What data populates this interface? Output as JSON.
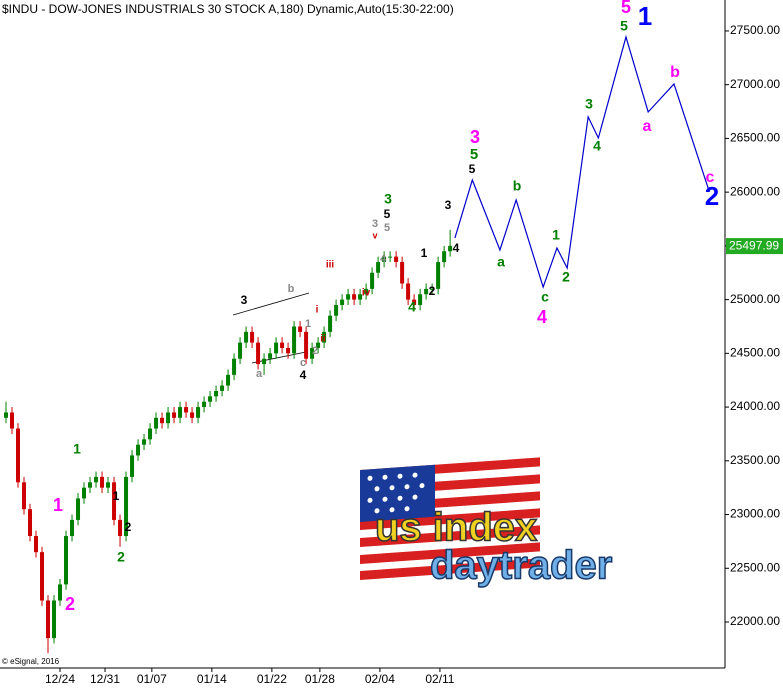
{
  "chart_data": {
    "type": "candlestick",
    "title": "$INDU - DOW-JONES INDUSTRIALS 30 STOCK A,180) Dynamic,Auto(15:30-22:00)",
    "copyright": "© eSignal, 2016",
    "up_color": "#008000",
    "down_color": "#cc0000",
    "open": [
      23900,
      23950,
      23800,
      23300,
      23050,
      22800,
      22650,
      22200,
      21850,
      22200,
      22350,
      22800,
      22950,
      23150,
      23250,
      23300,
      23350,
      23250,
      23300,
      22950,
      22800,
      23350,
      23550,
      23650,
      23700,
      23800,
      23900,
      23850,
      23950,
      23900,
      24000,
      23950,
      23900,
      24000,
      24050,
      24100,
      24150,
      24200,
      24300,
      24450,
      24600,
      24700,
      24600,
      24400,
      24450,
      24500,
      24600,
      24550,
      24500,
      24750,
      24700,
      24450,
      24550,
      24600,
      24700,
      24850,
      24950,
      25000,
      25050,
      25000,
      25050,
      25100,
      25250,
      25350,
      25400,
      25400,
      25350,
      25150,
      25000,
      24950,
      25050,
      25100,
      25100,
      25350,
      25450
    ],
    "high": [
      24050,
      24000,
      23850,
      23350,
      23100,
      22850,
      22700,
      22250,
      22250,
      22400,
      22850,
      23000,
      23200,
      23300,
      23350,
      23400,
      23400,
      23350,
      23350,
      23000,
      23400,
      23600,
      23700,
      23750,
      23850,
      23950,
      23950,
      24000,
      24000,
      24050,
      24050,
      24000,
      24050,
      24100,
      24150,
      24200,
      24250,
      24350,
      24500,
      24650,
      24750,
      24750,
      24650,
      24500,
      24550,
      24650,
      24650,
      24600,
      24800,
      24800,
      24750,
      24600,
      24650,
      24750,
      24900,
      25000,
      25050,
      25100,
      25100,
      25100,
      25150,
      25300,
      25400,
      25450,
      25450,
      25450,
      25400,
      25200,
      25050,
      25100,
      25150,
      25150,
      25400,
      25500,
      25650
    ],
    "low": [
      23850,
      23750,
      23250,
      23000,
      22750,
      22600,
      22150,
      21710,
      21800,
      22150,
      22300,
      22750,
      22900,
      23100,
      23200,
      23250,
      23200,
      23200,
      22900,
      22700,
      22750,
      23300,
      23500,
      23600,
      23650,
      23750,
      23800,
      23800,
      23850,
      23850,
      23900,
      23850,
      23850,
      23950,
      24000,
      24050,
      24100,
      24150,
      24250,
      24400,
      24550,
      24550,
      24350,
      24300,
      24400,
      24450,
      24500,
      24450,
      24450,
      24650,
      24400,
      24400,
      24500,
      24550,
      24650,
      24800,
      24900,
      24950,
      24950,
      24950,
      25000,
      25050,
      25200,
      25300,
      25350,
      25300,
      25100,
      24950,
      24900,
      24900,
      25000,
      25050,
      25050,
      25300,
      25400
    ],
    "close": [
      23950,
      23800,
      23300,
      23050,
      22800,
      22650,
      22200,
      21850,
      22200,
      22350,
      22800,
      22950,
      23150,
      23250,
      23300,
      23350,
      23250,
      23300,
      22950,
      22800,
      23350,
      23550,
      23650,
      23700,
      23800,
      23900,
      23850,
      23950,
      23900,
      24000,
      23950,
      23900,
      24000,
      24050,
      24100,
      24150,
      24200,
      24300,
      24450,
      24600,
      24700,
      24600,
      24400,
      24450,
      24500,
      24600,
      24550,
      24500,
      24750,
      24700,
      24450,
      24550,
      24600,
      24700,
      24850,
      24950,
      25000,
      25050,
      25000,
      25050,
      25100,
      25250,
      25350,
      25400,
      25400,
      25350,
      25150,
      25000,
      24950,
      25050,
      25100,
      25100,
      25350,
      25450,
      25500
    ],
    "projection": {
      "color": "#0000cc",
      "x": [
        75.8,
        78.7,
        83.3,
        86,
        90.5,
        92.8,
        94.5,
        98,
        99.7,
        104.3,
        108,
        112.3,
        118.2
      ],
      "values": [
        25574,
        26113,
        25462,
        25927,
        25117,
        25480,
        25294,
        26700,
        26504,
        27444,
        26746,
        27007,
        26002
      ]
    },
    "last_price": 25497.99,
    "last_price_color": "#22aa22",
    "xlim": [
      0,
      120.8
    ],
    "xticks": [
      {
        "value": 10,
        "label": "12/24"
      },
      {
        "value": 17.5,
        "label": "12/31"
      },
      {
        "value": 25.3,
        "label": "01/07"
      },
      {
        "value": 35.3,
        "label": "01/14"
      },
      {
        "value": 45.3,
        "label": "01/22"
      },
      {
        "value": 53.3,
        "label": "01/28"
      },
      {
        "value": 63.3,
        "label": "02/04"
      },
      {
        "value": 73.3,
        "label": "02/11"
      }
    ],
    "ylim": [
      21572,
      27788
    ],
    "yticks": [
      {
        "value": 22000,
        "label": "22000.00"
      },
      {
        "value": 22500,
        "label": "22500.00"
      },
      {
        "value": 23000,
        "label": "23000.00"
      },
      {
        "value": 23500,
        "label": "23500.00"
      },
      {
        "value": 24000,
        "label": "24000.00"
      },
      {
        "value": 24500,
        "label": "24500.00"
      },
      {
        "value": 25000,
        "label": "25000.00"
      },
      {
        "value": 25500,
        "label": "25500.00"
      },
      {
        "value": 26000,
        "label": "26000.00"
      },
      {
        "value": 26500,
        "label": "26500.00"
      },
      {
        "value": 27000,
        "label": "27000.00"
      },
      {
        "value": 27500,
        "label": "27500.00"
      }
    ],
    "annotations": [
      {
        "text": "5",
        "color": "#ff00ff"
      },
      {
        "text": "1",
        "color": "#0000ff"
      },
      {
        "text": "5",
        "color": "#008000"
      },
      {
        "text": "3",
        "color": "#ff00ff"
      },
      {
        "text": "5",
        "color": "#008000"
      },
      {
        "text": "5",
        "color": "#000000"
      },
      {
        "text": "b",
        "color": "#ff00ff"
      },
      {
        "text": "a",
        "color": "#ff00ff"
      },
      {
        "text": "c",
        "color": "#ff00ff"
      },
      {
        "text": "2",
        "color": "#0000ff"
      },
      {
        "text": "3",
        "color": "#008000"
      },
      {
        "text": "4",
        "color": "#008000"
      },
      {
        "text": "b",
        "color": "#008000"
      },
      {
        "text": "a",
        "color": "#008000"
      },
      {
        "text": "1",
        "color": "#008000"
      },
      {
        "text": "2",
        "color": "#008000"
      },
      {
        "text": "c",
        "color": "#008000"
      },
      {
        "text": "4",
        "color": "#ff00ff"
      },
      {
        "text": "3",
        "color": "#000000"
      },
      {
        "text": "4",
        "color": "#000000"
      },
      {
        "text": "1",
        "color": "#000000"
      },
      {
        "text": "2",
        "color": "#000000"
      },
      {
        "text": "4",
        "color": "#008000"
      },
      {
        "text": "3",
        "color": "#008000"
      },
      {
        "text": "5",
        "color": "#000000"
      },
      {
        "text": "5",
        "color": "#888888"
      },
      {
        "text": "3",
        "color": "#888888"
      },
      {
        "text": "v",
        "color": "#cc0000"
      },
      {
        "text": "4",
        "color": "#888888"
      },
      {
        "text": "iv",
        "color": "#cc0000"
      },
      {
        "text": "iii",
        "color": "#cc0000"
      },
      {
        "text": "3",
        "color": "#000000"
      },
      {
        "text": "b",
        "color": "#888888"
      },
      {
        "text": "i",
        "color": "#cc0000"
      },
      {
        "text": "1",
        "color": "#888888"
      },
      {
        "text": "ii",
        "color": "#cc0000"
      },
      {
        "text": "2",
        "color": "#888888"
      },
      {
        "text": "c",
        "color": "#888888"
      },
      {
        "text": "4",
        "color": "#000000"
      },
      {
        "text": "a",
        "color": "#888888"
      },
      {
        "text": "1",
        "color": "#008000"
      },
      {
        "text": "1",
        "color": "#000000"
      },
      {
        "text": "2",
        "color": "#000000"
      },
      {
        "text": "2",
        "color": "#008000"
      },
      {
        "text": "1",
        "color": "#ff00ff"
      },
      {
        "text": "2",
        "color": "#ff00ff"
      }
    ],
    "logo": {
      "line1": "us index",
      "line2": "daytrader"
    }
  }
}
